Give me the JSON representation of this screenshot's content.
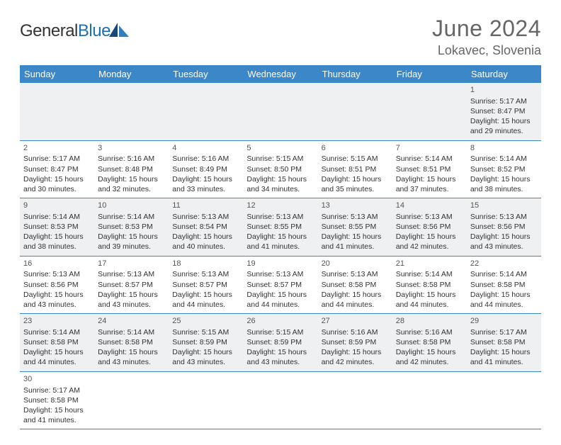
{
  "brand": {
    "name1": "General",
    "name2": "Blue"
  },
  "title": "June 2024",
  "location": "Lokavec, Slovenia",
  "colors": {
    "header_bg": "#3b87c8",
    "header_fg": "#ffffff",
    "row_odd": "#eef0f1",
    "row_even": "#ffffff",
    "border": "#3b87c8",
    "title_color": "#666666",
    "logo_blue": "#1a6fb5"
  },
  "weekdays": [
    "Sunday",
    "Monday",
    "Tuesday",
    "Wednesday",
    "Thursday",
    "Friday",
    "Saturday"
  ],
  "weeks": [
    [
      null,
      null,
      null,
      null,
      null,
      null,
      {
        "n": "1",
        "sr": "5:17 AM",
        "ss": "8:47 PM",
        "dl": "15 hours and 29 minutes."
      }
    ],
    [
      {
        "n": "2",
        "sr": "5:17 AM",
        "ss": "8:47 PM",
        "dl": "15 hours and 30 minutes."
      },
      {
        "n": "3",
        "sr": "5:16 AM",
        "ss": "8:48 PM",
        "dl": "15 hours and 32 minutes."
      },
      {
        "n": "4",
        "sr": "5:16 AM",
        "ss": "8:49 PM",
        "dl": "15 hours and 33 minutes."
      },
      {
        "n": "5",
        "sr": "5:15 AM",
        "ss": "8:50 PM",
        "dl": "15 hours and 34 minutes."
      },
      {
        "n": "6",
        "sr": "5:15 AM",
        "ss": "8:51 PM",
        "dl": "15 hours and 35 minutes."
      },
      {
        "n": "7",
        "sr": "5:14 AM",
        "ss": "8:51 PM",
        "dl": "15 hours and 37 minutes."
      },
      {
        "n": "8",
        "sr": "5:14 AM",
        "ss": "8:52 PM",
        "dl": "15 hours and 38 minutes."
      }
    ],
    [
      {
        "n": "9",
        "sr": "5:14 AM",
        "ss": "8:53 PM",
        "dl": "15 hours and 38 minutes."
      },
      {
        "n": "10",
        "sr": "5:14 AM",
        "ss": "8:53 PM",
        "dl": "15 hours and 39 minutes."
      },
      {
        "n": "11",
        "sr": "5:13 AM",
        "ss": "8:54 PM",
        "dl": "15 hours and 40 minutes."
      },
      {
        "n": "12",
        "sr": "5:13 AM",
        "ss": "8:55 PM",
        "dl": "15 hours and 41 minutes."
      },
      {
        "n": "13",
        "sr": "5:13 AM",
        "ss": "8:55 PM",
        "dl": "15 hours and 41 minutes."
      },
      {
        "n": "14",
        "sr": "5:13 AM",
        "ss": "8:56 PM",
        "dl": "15 hours and 42 minutes."
      },
      {
        "n": "15",
        "sr": "5:13 AM",
        "ss": "8:56 PM",
        "dl": "15 hours and 43 minutes."
      }
    ],
    [
      {
        "n": "16",
        "sr": "5:13 AM",
        "ss": "8:56 PM",
        "dl": "15 hours and 43 minutes."
      },
      {
        "n": "17",
        "sr": "5:13 AM",
        "ss": "8:57 PM",
        "dl": "15 hours and 43 minutes."
      },
      {
        "n": "18",
        "sr": "5:13 AM",
        "ss": "8:57 PM",
        "dl": "15 hours and 44 minutes."
      },
      {
        "n": "19",
        "sr": "5:13 AM",
        "ss": "8:57 PM",
        "dl": "15 hours and 44 minutes."
      },
      {
        "n": "20",
        "sr": "5:13 AM",
        "ss": "8:58 PM",
        "dl": "15 hours and 44 minutes."
      },
      {
        "n": "21",
        "sr": "5:14 AM",
        "ss": "8:58 PM",
        "dl": "15 hours and 44 minutes."
      },
      {
        "n": "22",
        "sr": "5:14 AM",
        "ss": "8:58 PM",
        "dl": "15 hours and 44 minutes."
      }
    ],
    [
      {
        "n": "23",
        "sr": "5:14 AM",
        "ss": "8:58 PM",
        "dl": "15 hours and 44 minutes."
      },
      {
        "n": "24",
        "sr": "5:14 AM",
        "ss": "8:58 PM",
        "dl": "15 hours and 43 minutes."
      },
      {
        "n": "25",
        "sr": "5:15 AM",
        "ss": "8:59 PM",
        "dl": "15 hours and 43 minutes."
      },
      {
        "n": "26",
        "sr": "5:15 AM",
        "ss": "8:59 PM",
        "dl": "15 hours and 43 minutes."
      },
      {
        "n": "27",
        "sr": "5:16 AM",
        "ss": "8:59 PM",
        "dl": "15 hours and 42 minutes."
      },
      {
        "n": "28",
        "sr": "5:16 AM",
        "ss": "8:58 PM",
        "dl": "15 hours and 42 minutes."
      },
      {
        "n": "29",
        "sr": "5:17 AM",
        "ss": "8:58 PM",
        "dl": "15 hours and 41 minutes."
      }
    ],
    [
      {
        "n": "30",
        "sr": "5:17 AM",
        "ss": "8:58 PM",
        "dl": "15 hours and 41 minutes."
      },
      null,
      null,
      null,
      null,
      null,
      null
    ]
  ],
  "labels": {
    "sunrise": "Sunrise:",
    "sunset": "Sunset:",
    "daylight": "Daylight:"
  }
}
